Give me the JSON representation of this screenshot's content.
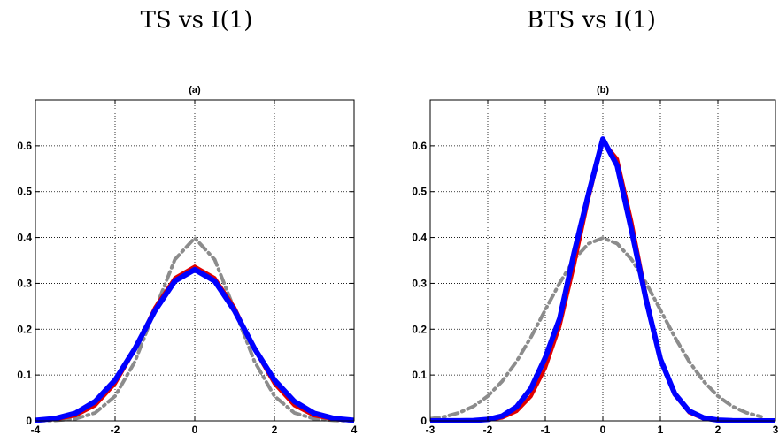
{
  "headings": [
    "TS vs I(1)",
    "BTS vs I(1)"
  ],
  "chart_data": [
    {
      "type": "line",
      "title": "(a)",
      "xlim": [
        -4,
        4
      ],
      "ylim": [
        0,
        0.7
      ],
      "xticks": [
        -4,
        -2,
        0,
        2,
        4
      ],
      "xtick_labels": [
        "-4",
        "-2",
        "0",
        "2",
        "4"
      ],
      "yticks": [
        0,
        0.1,
        0.2,
        0.3,
        0.4,
        0.5,
        0.6
      ],
      "ytick_labels": [
        "0",
        "0.1",
        "0.2",
        "0.3",
        "0.4",
        "0.5",
        "0.6"
      ],
      "grid": true,
      "series": [
        {
          "color": "#8c8c8c",
          "style": "dash-dot",
          "width": 4,
          "x": [
            -4,
            -3.5,
            -3,
            -2.5,
            -2,
            -1.5,
            -1,
            -0.5,
            0,
            0.5,
            1,
            1.5,
            2,
            2.5,
            3,
            3.5,
            4
          ],
          "y": [
            0.0001,
            0.0009,
            0.0044,
            0.0175,
            0.054,
            0.1295,
            0.242,
            0.352,
            0.399,
            0.352,
            0.242,
            0.1295,
            0.054,
            0.0175,
            0.0044,
            0.0009,
            0.0001
          ]
        },
        {
          "color": "#e00000",
          "style": "solid",
          "width": 4,
          "x": [
            -4,
            -3.5,
            -3,
            -2.5,
            -2,
            -1.5,
            -1,
            -0.5,
            0,
            0.5,
            1,
            1.5,
            2,
            2.5,
            3,
            3.5,
            4
          ],
          "y": [
            0.0005,
            0.003,
            0.0112,
            0.0335,
            0.081,
            0.156,
            0.247,
            0.312,
            0.337,
            0.312,
            0.247,
            0.156,
            0.081,
            0.0335,
            0.0112,
            0.003,
            0.0005
          ]
        },
        {
          "color": "#0000ff",
          "style": "solid",
          "width": 6,
          "x": [
            -4,
            -3.5,
            -3,
            -2.5,
            -2,
            -1.5,
            -1,
            -0.5,
            0,
            0.5,
            1,
            1.5,
            2,
            2.5,
            3,
            3.5,
            4
          ],
          "y": [
            0.0012,
            0.0052,
            0.0166,
            0.0425,
            0.089,
            0.158,
            0.24,
            0.305,
            0.33,
            0.305,
            0.24,
            0.158,
            0.089,
            0.0425,
            0.0166,
            0.0052,
            0.0012
          ]
        }
      ]
    },
    {
      "type": "line",
      "title": "(b)",
      "xlim": [
        -3,
        3
      ],
      "ylim": [
        0,
        0.7
      ],
      "xticks": [
        -3,
        -2,
        -1,
        0,
        1,
        2,
        3
      ],
      "xtick_labels": [
        "-3",
        "-2",
        "-1",
        "0",
        "1",
        "2",
        "3"
      ],
      "yticks": [
        0,
        0.1,
        0.2,
        0.3,
        0.4,
        0.5,
        0.6
      ],
      "ytick_labels": [
        "0",
        "0.1",
        "0.2",
        "0.3",
        "0.4",
        "0.5",
        "0.6"
      ],
      "grid": true,
      "series": [
        {
          "color": "#8c8c8c",
          "style": "dash-dot",
          "width": 4,
          "x": [
            -3,
            -2.75,
            -2.5,
            -2.25,
            -2,
            -1.75,
            -1.5,
            -1.25,
            -1,
            -0.75,
            -0.5,
            -0.25,
            0,
            0.25,
            0.5,
            0.75,
            1,
            1.25,
            1.5,
            1.75,
            2,
            2.25,
            2.5,
            2.75
          ],
          "y": [
            0.0044,
            0.0091,
            0.0175,
            0.0317,
            0.054,
            0.0863,
            0.1295,
            0.1826,
            0.242,
            0.3011,
            0.3521,
            0.3867,
            0.3989,
            0.3867,
            0.3521,
            0.3011,
            0.242,
            0.1826,
            0.1295,
            0.0863,
            0.054,
            0.0317,
            0.0175,
            0.0091
          ]
        },
        {
          "color": "#e00000",
          "style": "solid",
          "width": 4,
          "x": [
            -3,
            -2.75,
            -2.5,
            -2.25,
            -2,
            -1.75,
            -1.5,
            -1.25,
            -1,
            -0.75,
            -0.5,
            -0.25,
            0,
            0.25,
            0.5,
            0.75,
            1,
            1.25,
            1.5,
            1.75,
            2,
            2.25,
            2.5,
            2.75,
            3
          ],
          "y": [
            0,
            0,
            0.0001,
            0.0004,
            0.0018,
            0.0067,
            0.0208,
            0.0536,
            0.115,
            0.2062,
            0.3385,
            0.4848,
            0.61,
            0.5714,
            0.4346,
            0.2739,
            0.1371,
            0.0561,
            0.0181,
            0.0047,
            0.001,
            0.0002,
            0,
            0,
            0
          ]
        },
        {
          "color": "#0000ff",
          "style": "solid",
          "width": 6,
          "x": [
            -3,
            -2.75,
            -2.5,
            -2.25,
            -2,
            -1.75,
            -1.5,
            -1.25,
            -1,
            -0.75,
            -0.5,
            -0.25,
            0,
            0.25,
            0.5,
            0.75,
            1,
            1.25,
            1.5,
            1.75,
            2,
            2.25,
            2.5,
            2.75,
            3
          ],
          "y": [
            0,
            0.0001,
            0.0002,
            0.0008,
            0.0031,
            0.0107,
            0.0305,
            0.0708,
            0.138,
            0.2236,
            0.3665,
            0.4952,
            0.615,
            0.5564,
            0.4146,
            0.2646,
            0.135,
            0.059,
            0.0214,
            0.0066,
            0.0017,
            0.0004,
            0.0001,
            0,
            0
          ]
        }
      ]
    }
  ]
}
